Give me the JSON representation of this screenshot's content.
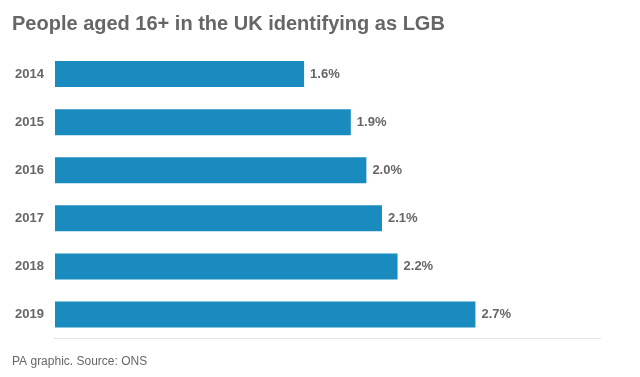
{
  "chart_data": {
    "type": "bar",
    "orientation": "horizontal",
    "title": "People aged 16+ in the UK identifying as LGB",
    "annotations": [
      "PA graphic. Source: ONS"
    ],
    "categories": [
      "2014",
      "2015",
      "2016",
      "2017",
      "2018",
      "2019"
    ],
    "values": [
      1.6,
      1.9,
      2.0,
      2.1,
      2.2,
      2.7
    ],
    "value_labels": [
      "1.6%",
      "1.9%",
      "2.0%",
      "2.1%",
      "2.2%",
      "2.7%"
    ],
    "data_labels": true,
    "color": "#1a8bbf",
    "xlim": [
      0,
      3.5
    ],
    "tick_labels": "y",
    "grid": false
  }
}
